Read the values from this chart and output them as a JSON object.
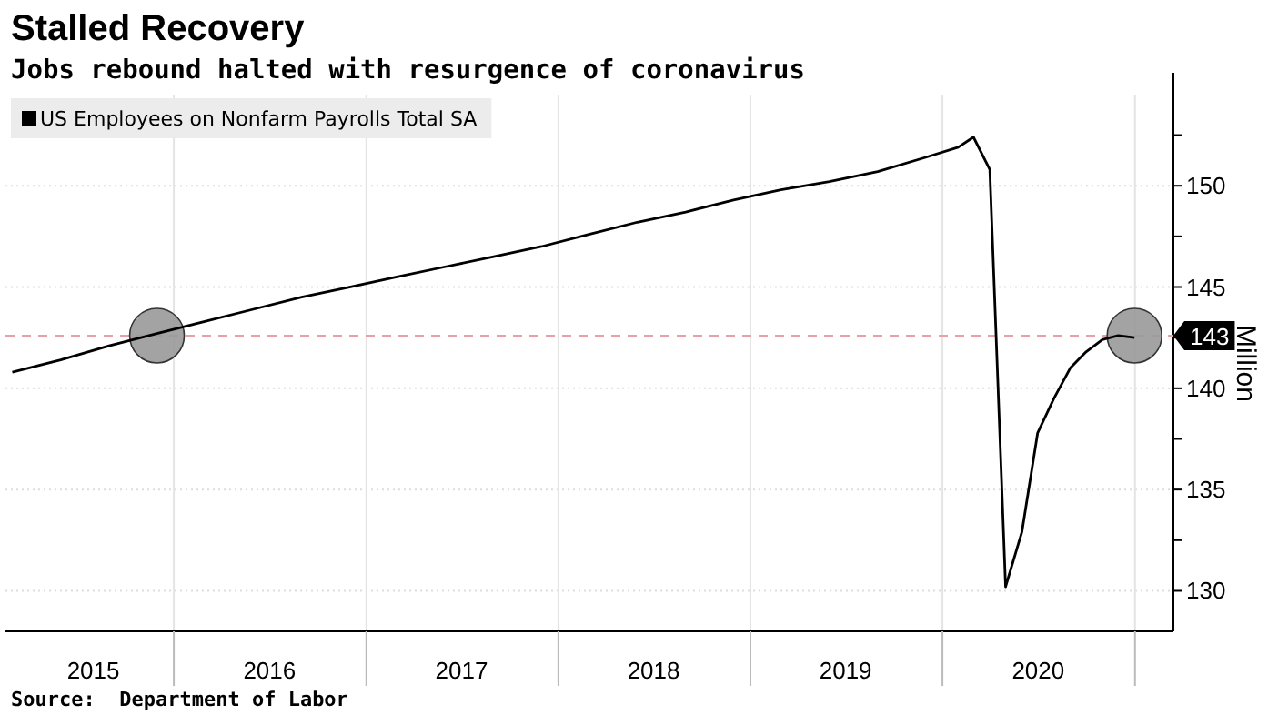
{
  "chart_data": {
    "type": "line",
    "title": "Stalled Recovery",
    "subtitle": "Jobs rebound halted with resurgence of coronavirus",
    "ylabel": "Million",
    "annotations": [
      "Source:  Department of Labor"
    ],
    "series": [
      {
        "name": "US Employees on Nonfarm Payrolls Total SA",
        "color": "#000000",
        "x": [
          "2015-02-28",
          "2015-05-31",
          "2015-08-31",
          "2015-11-30",
          "2016-02-29",
          "2016-05-31",
          "2016-08-31",
          "2016-11-30",
          "2017-02-28",
          "2017-05-31",
          "2017-08-31",
          "2017-11-30",
          "2018-02-28",
          "2018-05-31",
          "2018-08-31",
          "2018-11-30",
          "2019-02-28",
          "2019-05-31",
          "2019-08-31",
          "2019-11-30",
          "2020-01-31",
          "2020-02-29",
          "2020-03-31",
          "2020-04-30",
          "2020-05-31",
          "2020-06-30",
          "2020-07-31",
          "2020-08-31",
          "2020-09-30",
          "2020-10-31",
          "2020-11-30",
          "2020-12-31"
        ],
        "values": [
          140.8,
          141.4,
          142.1,
          142.7,
          143.3,
          143.9,
          144.5,
          145.0,
          145.5,
          146.0,
          146.5,
          147.0,
          147.6,
          148.2,
          148.7,
          149.3,
          149.8,
          150.2,
          150.7,
          151.4,
          151.9,
          152.4,
          150.8,
          130.2,
          132.9,
          137.8,
          139.5,
          141.0,
          141.8,
          142.4,
          142.6,
          142.5
        ]
      },
      {
        "type": "scatter",
        "marker": "circle",
        "color": "#999999",
        "x": [
          "2015-11-30",
          "2020-12-31"
        ],
        "values": [
          142.6,
          142.6
        ]
      }
    ],
    "xlim": [
      "2015-02-15",
      "2021-03-15"
    ],
    "xticks": [
      {
        "value": "2015-08-01",
        "label": "2015"
      },
      {
        "value": "2016-01-01",
        "label": null
      },
      {
        "value": "2016-07-01",
        "label": "2016"
      },
      {
        "value": "2017-01-01",
        "label": null
      },
      {
        "value": "2017-07-01",
        "label": "2017"
      },
      {
        "value": "2018-01-01",
        "label": null
      },
      {
        "value": "2018-07-01",
        "label": "2018"
      },
      {
        "value": "2019-01-01",
        "label": null
      },
      {
        "value": "2019-07-01",
        "label": "2019"
      },
      {
        "value": "2020-01-01",
        "label": null
      },
      {
        "value": "2020-07-01",
        "label": "2020"
      },
      {
        "value": "2021-01-01",
        "label": null
      }
    ],
    "ylim": [
      128,
      154.5
    ],
    "yticks": [
      130,
      {
        "value": 132.5,
        "label": null
      },
      135,
      {
        "value": 137.5,
        "label": null
      },
      140,
      {
        "value": 142.5,
        "label": null
      },
      145,
      {
        "value": 147.5,
        "label": null
      },
      150,
      {
        "value": 152.5,
        "label": null
      }
    ],
    "ref_lines": [
      {
        "axis": "y",
        "value": 142.6,
        "label": "143",
        "color": "#e8a0a8",
        "line_style": "dashed"
      }
    ],
    "grid": true,
    "legend": "top left",
    "line_style": "solid"
  }
}
